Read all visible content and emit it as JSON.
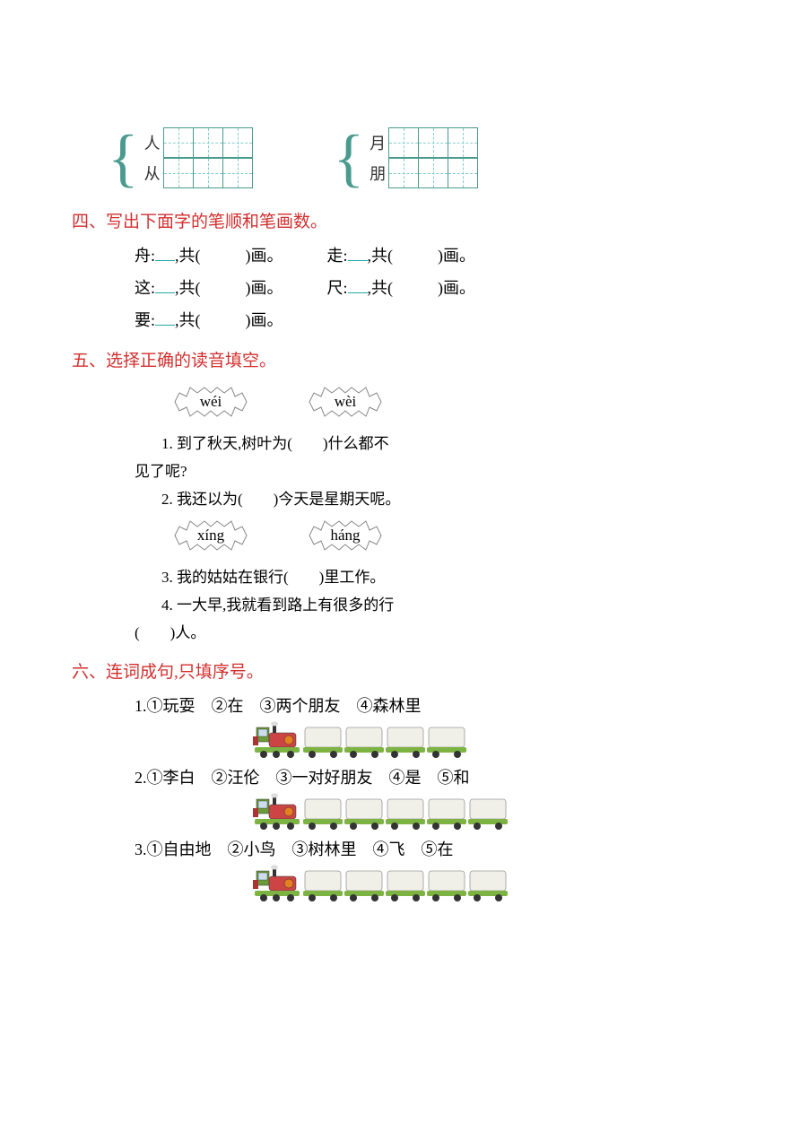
{
  "grid": {
    "pairs": [
      {
        "top": "人",
        "bottom": "从"
      },
      {
        "top": "月",
        "bottom": "朋"
      }
    ],
    "grid_border": "#4a9b8e",
    "grid_dash": "#88cccc"
  },
  "section4": {
    "title": "四、写出下面字的笔顺和笔画数。",
    "items": [
      {
        "char": "舟",
        "suffix": "画。"
      },
      {
        "char": "走",
        "suffix": "画。"
      },
      {
        "char": "这",
        "suffix": "画。"
      },
      {
        "char": "尺",
        "suffix": "画。"
      },
      {
        "char": "要",
        "suffix": "画。"
      }
    ]
  },
  "section5": {
    "title": "五、选择正确的读音填空。",
    "bursts1": [
      "wéi",
      "wèi"
    ],
    "q1": "1. 到了秋天,树叶为(　　)什么都不",
    "q1b": "见了呢?",
    "q2": "2. 我还以为(　　)今天是星期天呢。",
    "bursts2": [
      "xíng",
      "háng"
    ],
    "q3": "3. 我的姑姑在银行(　　)里工作。",
    "q4": "4. 一大早,我就看到路上有很多的行",
    "q4b": "(　　)人。"
  },
  "section6": {
    "title": "六、连词成句,只填序号。",
    "sentences": [
      {
        "label": "1.",
        "words": "①玩耍　②在　③两个朋友　④森林里",
        "cars": 4
      },
      {
        "label": "2.",
        "words": "①李白　②汪伦　③一对好朋友　④是　⑤和",
        "cars": 5
      },
      {
        "label": "3.",
        "words": "①自由地　②小鸟　③树林里　④飞　⑤在",
        "cars": 5
      }
    ]
  },
  "colors": {
    "title_red": "#d32f2f",
    "text": "#000000",
    "bg": "#ffffff",
    "teal": "#4a9b8e",
    "loco_body": "#c44",
    "loco_green": "#6a9b3a",
    "loco_orange": "#e67e22",
    "car_body": "#f0f0e8",
    "car_base": "#7cb342",
    "wheel": "#333"
  }
}
